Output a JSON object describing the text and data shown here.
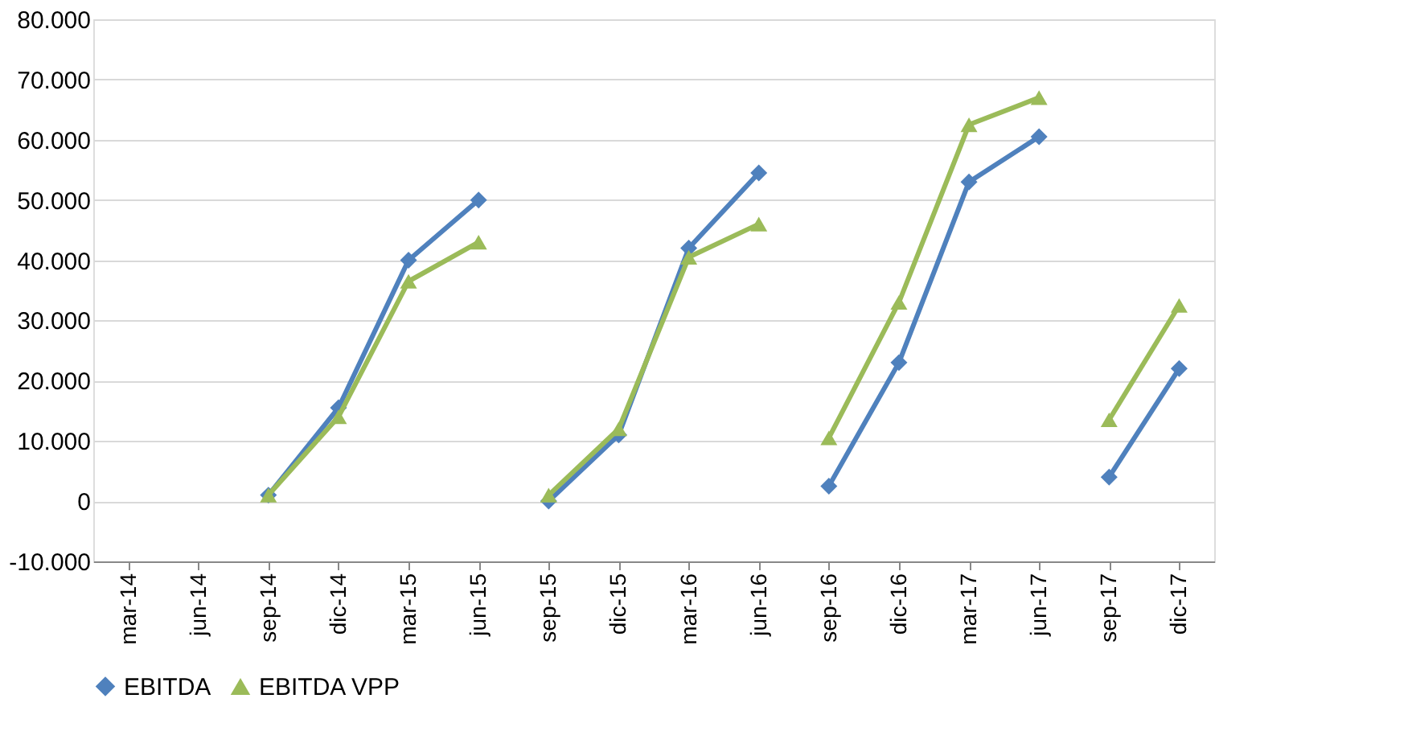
{
  "chart_data": {
    "type": "line",
    "categories": [
      "mar-14",
      "jun-14",
      "sep-14",
      "dic-14",
      "mar-15",
      "jun-15",
      "sep-15",
      "dic-15",
      "mar-16",
      "jun-16",
      "sep-16",
      "dic-16",
      "mar-17",
      "jun-17",
      "sep-17",
      "dic-17"
    ],
    "series": [
      {
        "name": "EBITDA",
        "color": "#4f81bd",
        "marker": "diamond",
        "values": [
          null,
          null,
          1000,
          15500,
          40000,
          50000,
          null,
          null,
          null,
          null,
          null,
          null,
          null,
          null,
          null,
          null
        ]
      },
      {
        "color": "#4f81bd",
        "marker": "diamond",
        "values": [
          null,
          null,
          null,
          null,
          null,
          null,
          0,
          11000,
          42000,
          54500,
          null,
          null,
          null,
          null,
          null,
          null
        ]
      },
      {
        "color": "#4f81bd",
        "marker": "diamond",
        "values": [
          null,
          null,
          null,
          null,
          null,
          null,
          null,
          null,
          null,
          null,
          2500,
          23000,
          53000,
          60500,
          null,
          null
        ]
      },
      {
        "color": "#4f81bd",
        "marker": "diamond",
        "values": [
          null,
          null,
          null,
          null,
          null,
          null,
          null,
          null,
          null,
          null,
          null,
          null,
          null,
          null,
          4000,
          22000
        ]
      },
      {
        "name": "EBITDA VPP",
        "color": "#9bbb59",
        "marker": "triangle",
        "values": [
          null,
          null,
          1000,
          14000,
          36500,
          43000,
          null,
          null,
          null,
          null,
          null,
          null,
          null,
          null,
          null,
          null
        ]
      },
      {
        "color": "#9bbb59",
        "marker": "triangle",
        "values": [
          null,
          null,
          null,
          null,
          null,
          null,
          1000,
          12000,
          40500,
          46000,
          null,
          null,
          null,
          null,
          null,
          null
        ]
      },
      {
        "color": "#9bbb59",
        "marker": "triangle",
        "values": [
          null,
          null,
          null,
          null,
          null,
          null,
          null,
          null,
          null,
          null,
          10500,
          33000,
          62500,
          67000,
          null,
          null
        ]
      },
      {
        "color": "#9bbb59",
        "marker": "triangle",
        "values": [
          null,
          null,
          null,
          null,
          null,
          null,
          null,
          null,
          null,
          null,
          null,
          null,
          null,
          null,
          13500,
          32500
        ]
      }
    ],
    "ylim": [
      -10000,
      80000
    ],
    "yticks": [
      {
        "value": -10000,
        "label": "-10.000"
      },
      0,
      {
        "value": 10000,
        "label": "10.000"
      },
      {
        "value": 20000,
        "label": "20.000"
      },
      {
        "value": 30000,
        "label": "30.000"
      },
      {
        "value": 40000,
        "label": "40.000"
      },
      {
        "value": 50000,
        "label": "50.000"
      },
      {
        "value": 60000,
        "label": "60.000"
      },
      {
        "value": 70000,
        "label": "70.000"
      },
      {
        "value": 80000,
        "label": "80.000"
      }
    ],
    "grid": "y",
    "legend": "bottom",
    "line_style": "solid"
  }
}
